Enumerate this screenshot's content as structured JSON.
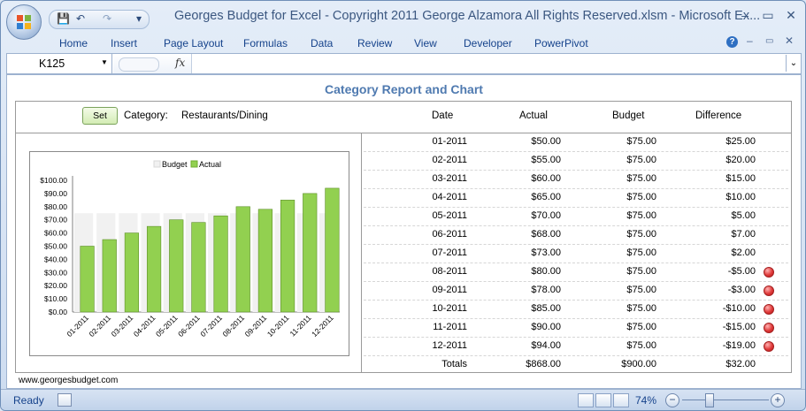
{
  "window": {
    "title": "Georges Budget for Excel - Copyright 2011 George Alzamora All Rights Reserved.xlsm - Microsoft Ex...",
    "controls": {
      "minimize": "–",
      "restore": "▭",
      "close": "✕"
    },
    "workbook_controls": {
      "minimize": "–",
      "restore": "▭",
      "close": "✕"
    }
  },
  "quick_access": {
    "save": "💾",
    "undo": "↶",
    "redo": "↷",
    "customize": "▾"
  },
  "ribbon": {
    "tabs": [
      "Home",
      "Insert",
      "Page Layout",
      "Formulas",
      "Data",
      "Review",
      "View",
      "Developer",
      "PowerPivot"
    ],
    "help": "?"
  },
  "formula_bar": {
    "name_box": "K125",
    "fx": "fx",
    "content": "",
    "expand": "⌄"
  },
  "report": {
    "title": "Category Report and Chart",
    "set_label": "Set",
    "category_label": "Category:",
    "category_value": "Restaurants/Dining",
    "headers": {
      "date": "Date",
      "actual": "Actual",
      "budget": "Budget",
      "difference": "Difference"
    },
    "rows": [
      {
        "date": "01-2011",
        "actual": "$50.00",
        "budget": "$75.00",
        "difference": "$25.00",
        "flag": false
      },
      {
        "date": "02-2011",
        "actual": "$55.00",
        "budget": "$75.00",
        "difference": "$20.00",
        "flag": false
      },
      {
        "date": "03-2011",
        "actual": "$60.00",
        "budget": "$75.00",
        "difference": "$15.00",
        "flag": false
      },
      {
        "date": "04-2011",
        "actual": "$65.00",
        "budget": "$75.00",
        "difference": "$10.00",
        "flag": false
      },
      {
        "date": "05-2011",
        "actual": "$70.00",
        "budget": "$75.00",
        "difference": "$5.00",
        "flag": false
      },
      {
        "date": "06-2011",
        "actual": "$68.00",
        "budget": "$75.00",
        "difference": "$7.00",
        "flag": false
      },
      {
        "date": "07-2011",
        "actual": "$73.00",
        "budget": "$75.00",
        "difference": "$2.00",
        "flag": false
      },
      {
        "date": "08-2011",
        "actual": "$80.00",
        "budget": "$75.00",
        "difference": "-$5.00",
        "flag": true
      },
      {
        "date": "09-2011",
        "actual": "$78.00",
        "budget": "$75.00",
        "difference": "-$3.00",
        "flag": true
      },
      {
        "date": "10-2011",
        "actual": "$85.00",
        "budget": "$75.00",
        "difference": "-$10.00",
        "flag": true
      },
      {
        "date": "11-2011",
        "actual": "$90.00",
        "budget": "$75.00",
        "difference": "-$15.00",
        "flag": true
      },
      {
        "date": "12-2011",
        "actual": "$94.00",
        "budget": "$75.00",
        "difference": "-$19.00",
        "flag": true
      }
    ],
    "totals": {
      "label": "Totals",
      "actual": "$868.00",
      "budget": "$900.00",
      "difference": "$32.00"
    },
    "footer_url": "www.georgesbudget.com"
  },
  "chart_data": {
    "type": "bar",
    "categories": [
      "01-2011",
      "02-2011",
      "03-2011",
      "04-2011",
      "05-2011",
      "06-2011",
      "07-2011",
      "08-2011",
      "09-2011",
      "10-2011",
      "11-2011",
      "12-2011"
    ],
    "series": [
      {
        "name": "Budget",
        "values": [
          75,
          75,
          75,
          75,
          75,
          75,
          75,
          75,
          75,
          75,
          75,
          75
        ],
        "color": "#f1f1f1"
      },
      {
        "name": "Actual",
        "values": [
          50,
          55,
          60,
          65,
          70,
          68,
          73,
          80,
          78,
          85,
          90,
          94
        ],
        "color": "#92d050"
      }
    ],
    "ylim": [
      0,
      100
    ],
    "yticks": [
      "$0.00",
      "$10.00",
      "$20.00",
      "$30.00",
      "$40.00",
      "$50.00",
      "$60.00",
      "$70.00",
      "$80.00",
      "$90.00",
      "$100.00"
    ],
    "legend": "top",
    "title": "",
    "xlabel": "",
    "ylabel": ""
  },
  "status_bar": {
    "ready": "Ready",
    "zoom": "74%",
    "zoom_out": "−",
    "zoom_in": "+"
  },
  "colors": {
    "actual": "#92d050",
    "budget": "#f1f1f1",
    "title": "#4f7ab0",
    "flag": "#e03a3a"
  }
}
